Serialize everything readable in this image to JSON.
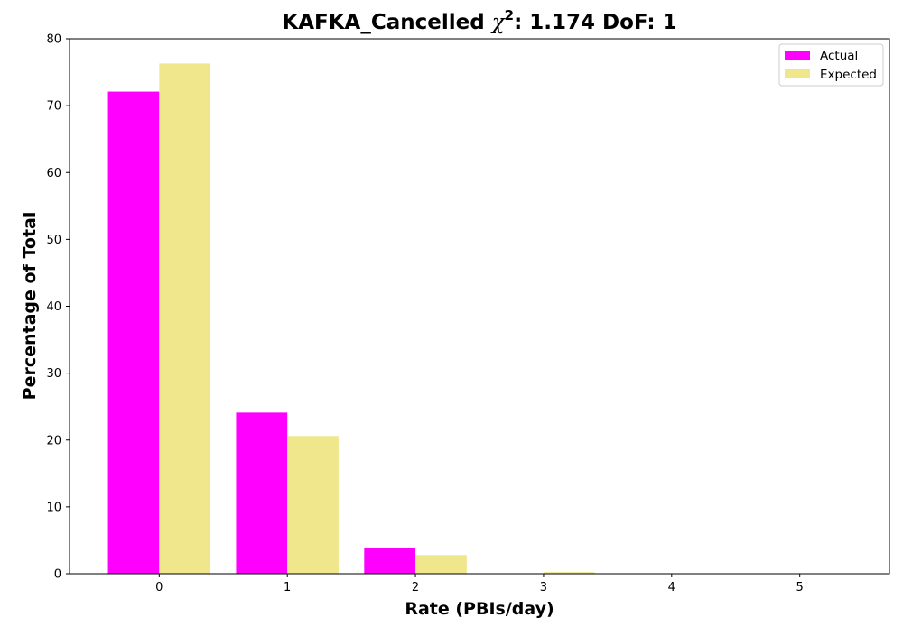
{
  "chart_data": {
    "type": "bar",
    "title": {
      "prefix": "KAFKA_Cancelled ",
      "chi": "χ",
      "sup": "2",
      "suffix": ": 1.174 DoF: 1"
    },
    "xlabel": "Rate (PBIs/day)",
    "ylabel": "Percentage of Total",
    "categories": [
      "0",
      "1",
      "2",
      "3",
      "4",
      "5"
    ],
    "x_ticks": [
      0,
      1,
      2,
      3,
      4,
      5
    ],
    "y_ticks": [
      0,
      10,
      20,
      30,
      40,
      50,
      60,
      70,
      80
    ],
    "ylim": [
      0,
      80
    ],
    "xlim": [
      -0.7,
      5.7
    ],
    "grid": false,
    "legend_position": "top-right",
    "series": [
      {
        "name": "Actual",
        "color": "#ff00ff",
        "values": [
          72.1,
          24.1,
          3.8,
          0,
          0,
          0
        ]
      },
      {
        "name": "Expected",
        "color": "#f0e68c",
        "values": [
          76.3,
          20.6,
          2.8,
          0.25,
          0.02,
          0.0
        ]
      }
    ]
  }
}
